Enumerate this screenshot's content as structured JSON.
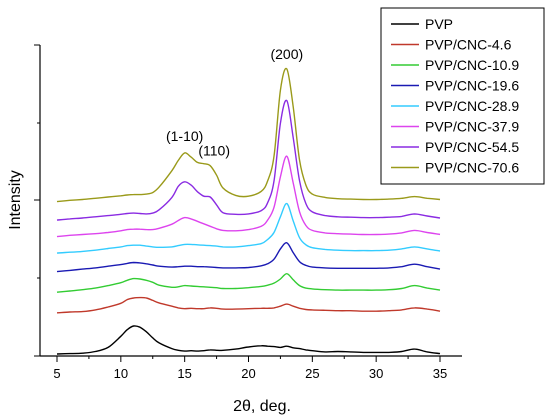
{
  "chart_data": {
    "type": "line",
    "xlabel": "2θ, deg.",
    "ylabel": "Intensity",
    "xlim": [
      4,
      37
    ],
    "x_ticks": [
      "5",
      "10",
      "15",
      "20",
      "25",
      "30",
      "35"
    ],
    "y_ticks_labeled": false,
    "grid": false,
    "legend_position": "top-right",
    "annotations": [
      {
        "text": "(200)",
        "x": 23.0,
        "series": "PVP/CNC-70.6"
      },
      {
        "text": "(1-10)",
        "x": 15.0,
        "series": "PVP/CNC-70.6"
      },
      {
        "text": "(110)",
        "x": 17.0,
        "series": "PVP/CNC-70.6"
      }
    ],
    "x": [
      5,
      6,
      7,
      8,
      9,
      10,
      10.5,
      11,
      11.5,
      12,
      12.5,
      13,
      14,
      14.5,
      15,
      15.5,
      16,
      16.5,
      17,
      17.5,
      18,
      19,
      20,
      21,
      21.5,
      22,
      22.5,
      23,
      23.5,
      24,
      24.5,
      25,
      26,
      27,
      28,
      29,
      30,
      31,
      32,
      33,
      34,
      35
    ],
    "series": [
      {
        "name": "PVP",
        "color": "#000000",
        "values": [
          0.0,
          0.1,
          0.2,
          0.6,
          1.6,
          4.3,
          5.9,
          6.8,
          6.5,
          5.4,
          3.9,
          2.7,
          1.3,
          0.9,
          0.7,
          0.8,
          0.7,
          0.8,
          1.0,
          0.9,
          0.9,
          1.2,
          1.7,
          2.0,
          1.9,
          1.8,
          1.6,
          1.9,
          1.5,
          1.3,
          1.0,
          0.8,
          0.5,
          0.6,
          0.5,
          0.4,
          0.4,
          0.4,
          0.6,
          1.2,
          0.5,
          0.1
        ]
      },
      {
        "name": "PVP/CNC-4.6",
        "color": "#c0392b",
        "values": [
          10.0,
          10.2,
          10.3,
          10.7,
          11.4,
          12.3,
          13.2,
          13.6,
          13.7,
          13.6,
          13.0,
          12.4,
          11.6,
          11.2,
          11.0,
          11.1,
          11.0,
          11.0,
          11.2,
          11.1,
          10.9,
          10.9,
          11.0,
          11.1,
          11.1,
          11.2,
          11.6,
          12.1,
          11.6,
          11.1,
          10.8,
          10.7,
          10.6,
          10.5,
          10.5,
          10.4,
          10.4,
          10.5,
          10.7,
          11.2,
          10.9,
          10.4
        ]
      },
      {
        "name": "PVP/CNC-10.9",
        "color": "#33cc33",
        "values": [
          15.0,
          15.3,
          15.6,
          16.0,
          16.6,
          17.3,
          17.9,
          18.3,
          18.2,
          17.9,
          17.4,
          16.7,
          16.2,
          16.3,
          16.6,
          16.5,
          16.4,
          16.3,
          16.2,
          16.1,
          15.9,
          15.9,
          16.1,
          16.4,
          16.7,
          17.2,
          18.2,
          19.5,
          18.0,
          16.6,
          16.0,
          15.8,
          15.6,
          15.5,
          15.5,
          15.5,
          15.5,
          15.6,
          15.9,
          16.6,
          16.0,
          15.5
        ]
      },
      {
        "name": "PVP/CNC-19.6",
        "color": "#1a1ab3",
        "values": [
          20.0,
          20.3,
          20.6,
          20.9,
          21.3,
          21.7,
          22.0,
          22.2,
          22.1,
          21.9,
          21.6,
          21.3,
          21.1,
          21.2,
          21.3,
          21.3,
          21.2,
          21.2,
          21.1,
          21.0,
          20.9,
          20.9,
          21.0,
          21.4,
          21.9,
          23.0,
          25.5,
          27.0,
          24.6,
          22.4,
          21.5,
          21.1,
          20.9,
          20.8,
          20.8,
          20.8,
          20.8,
          20.9,
          21.2,
          21.8,
          21.2,
          20.6
        ]
      },
      {
        "name": "PVP/CNC-28.9",
        "color": "#33ccff",
        "values": [
          24.5,
          24.7,
          24.9,
          25.2,
          25.6,
          26.0,
          26.3,
          26.4,
          26.4,
          26.2,
          26.0,
          25.9,
          26.0,
          26.3,
          26.6,
          26.6,
          26.5,
          26.4,
          26.3,
          26.2,
          26.0,
          26.0,
          26.3,
          26.8,
          27.8,
          29.5,
          33.3,
          36.5,
          32.3,
          28.2,
          26.5,
          25.8,
          25.4,
          25.2,
          25.1,
          25.1,
          25.1,
          25.2,
          25.5,
          26.0,
          25.5,
          25.0
        ]
      },
      {
        "name": "PVP/CNC-37.9",
        "color": "#dd44ee",
        "values": [
          28.5,
          28.8,
          29.0,
          29.2,
          29.5,
          29.9,
          30.2,
          30.3,
          30.3,
          30.2,
          30.2,
          30.5,
          31.5,
          32.4,
          33.1,
          32.8,
          32.2,
          31.6,
          31.0,
          30.4,
          30.0,
          29.9,
          30.2,
          31.0,
          32.5,
          35.6,
          43.0,
          48.0,
          41.5,
          34.5,
          31.2,
          30.0,
          29.4,
          29.2,
          29.1,
          29.0,
          29.0,
          29.1,
          29.4,
          30.0,
          29.5,
          29.0
        ]
      },
      {
        "name": "PVP/CNC-54.5",
        "color": "#8a2be2",
        "values": [
          32.5,
          32.8,
          33.0,
          33.3,
          33.6,
          33.9,
          34.1,
          34.2,
          34.1,
          34.0,
          34.2,
          35.0,
          38.0,
          40.7,
          41.8,
          41.0,
          39.4,
          38.3,
          38.1,
          36.2,
          34.3,
          33.9,
          34.0,
          34.8,
          36.7,
          42.0,
          56.0,
          61.5,
          52.5,
          42.0,
          36.5,
          34.5,
          33.6,
          33.3,
          33.2,
          33.1,
          33.1,
          33.2,
          33.4,
          34.0,
          33.5,
          33.0
        ]
      },
      {
        "name": "PVP/CNC-70.6",
        "color": "#9a9a1a",
        "values": [
          37.0,
          37.3,
          37.5,
          37.8,
          38.1,
          38.4,
          38.6,
          38.7,
          38.7,
          38.8,
          39.2,
          40.5,
          44.5,
          47.0,
          48.8,
          47.8,
          46.5,
          46.2,
          45.7,
          43.4,
          40.3,
          38.5,
          38.3,
          39.5,
          42.0,
          48.0,
          64.0,
          69.2,
          60.0,
          47.0,
          41.0,
          38.8,
          38.0,
          37.7,
          37.6,
          37.5,
          37.5,
          37.6,
          37.8,
          38.2,
          37.8,
          37.5
        ]
      }
    ]
  }
}
